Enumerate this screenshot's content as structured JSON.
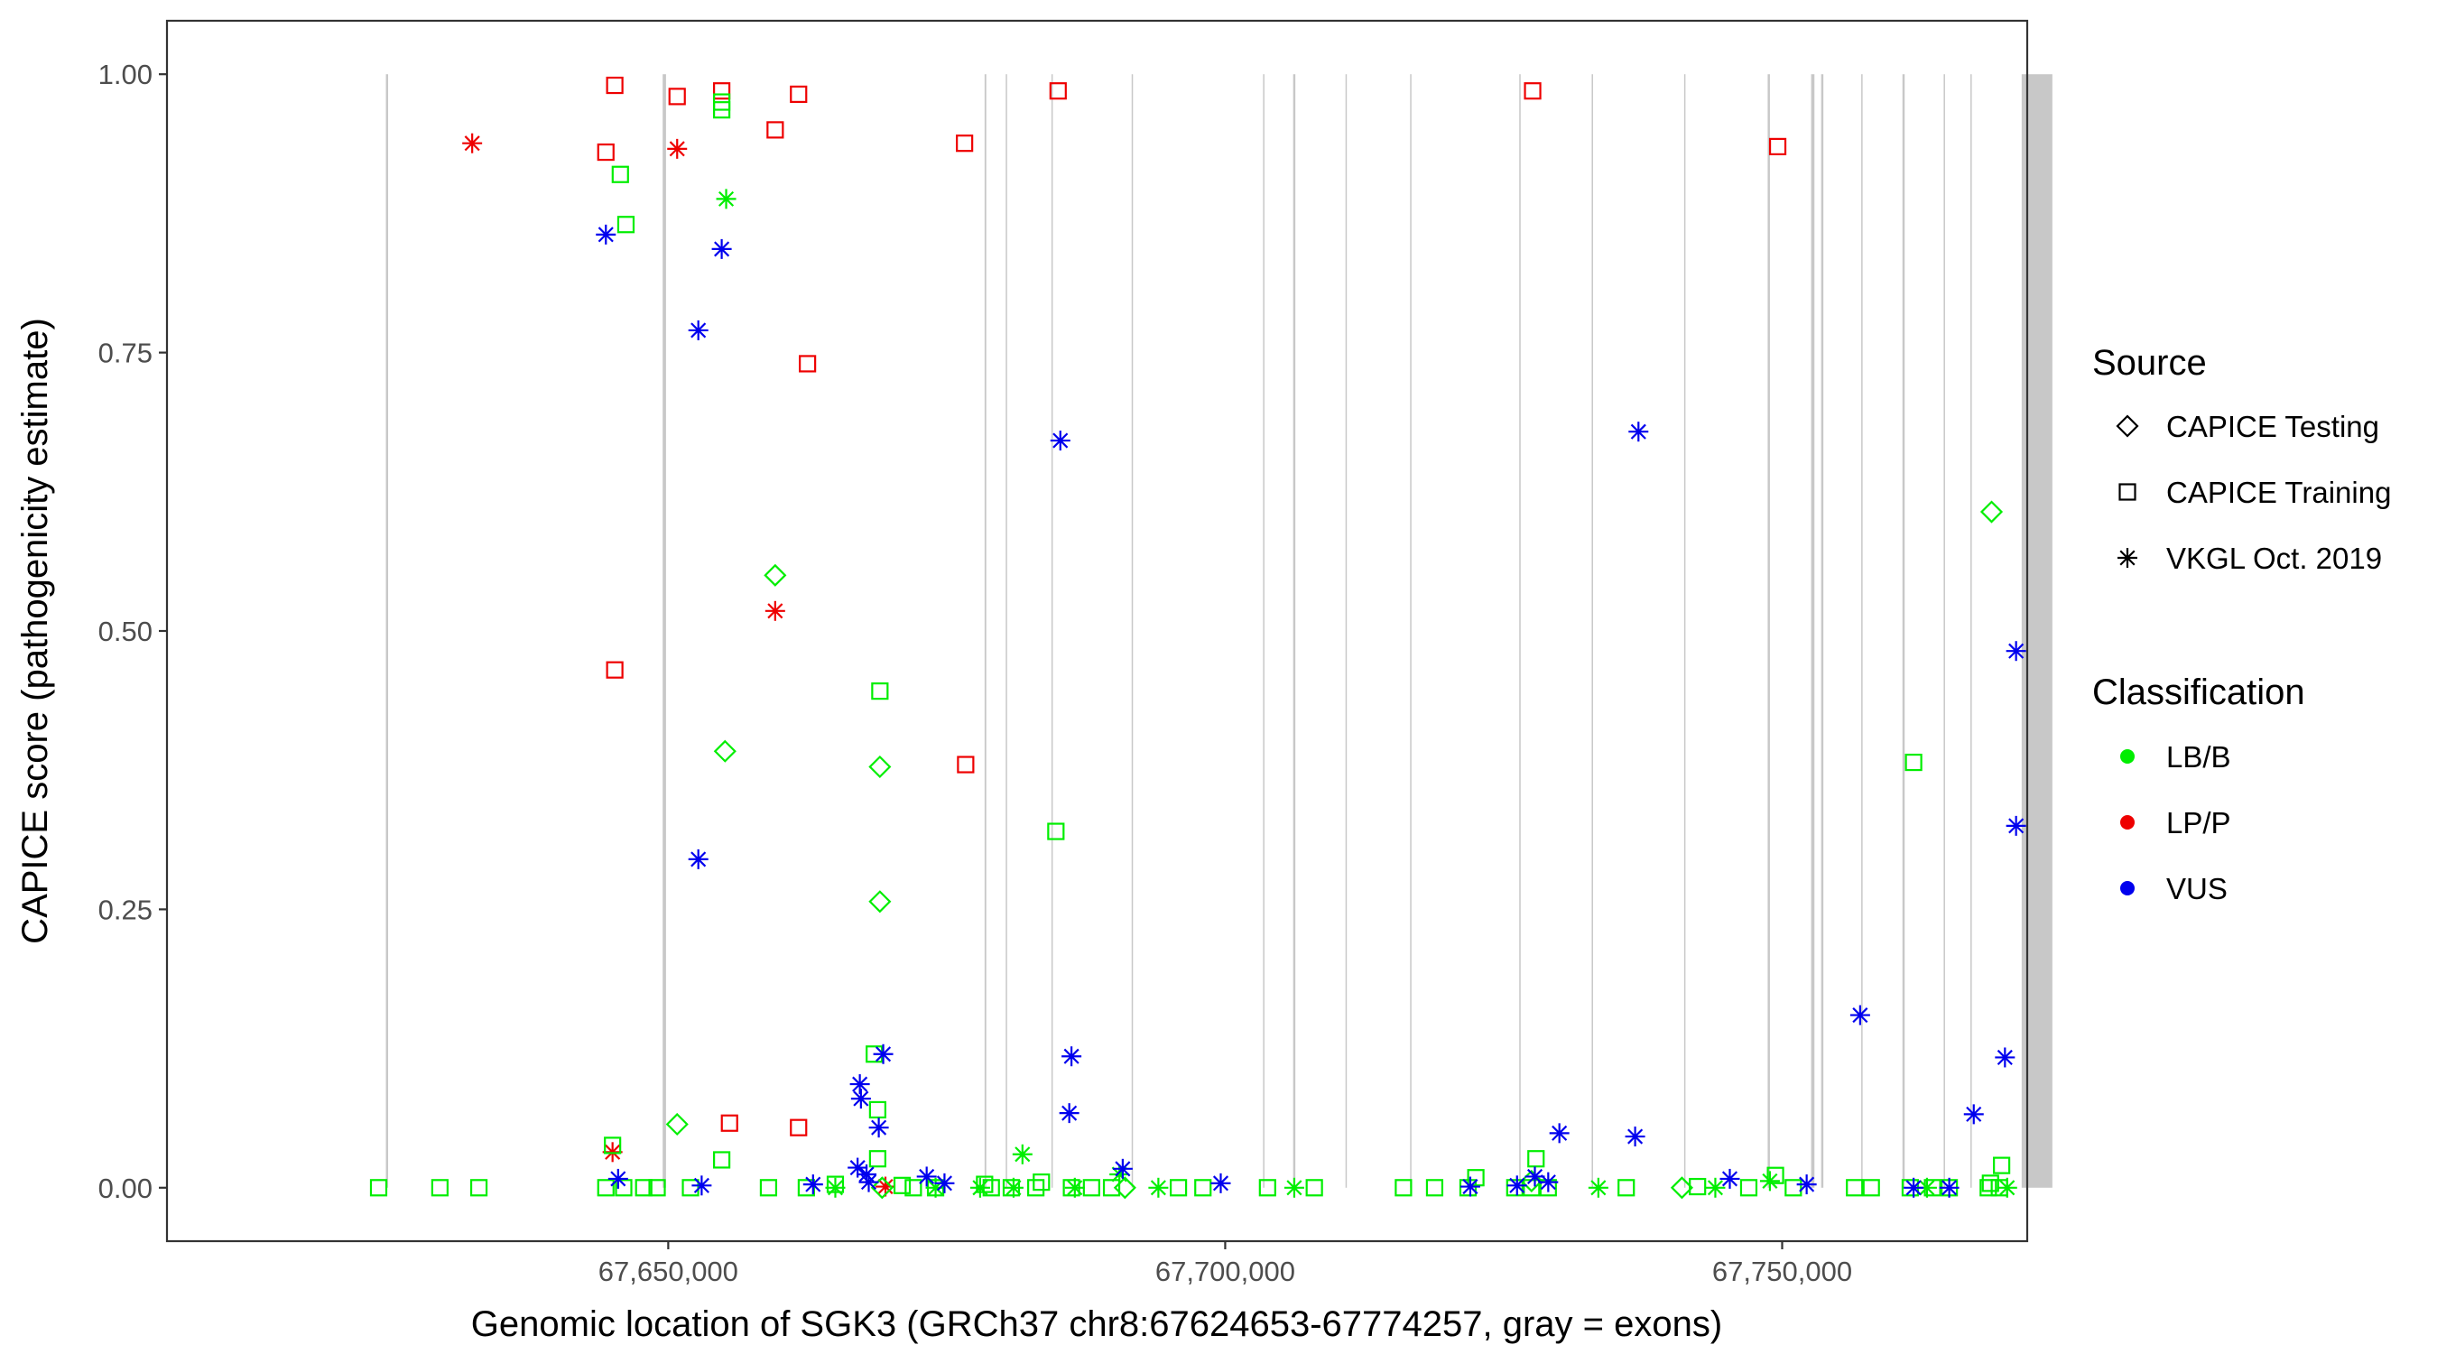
{
  "chart_data": {
    "type": "scatter",
    "xlabel": "Genomic location of SGK3 (GRCh37 chr8:67624653-67774257, gray = exons)",
    "ylabel": "CAPICE score (pathogenicity estimate)",
    "xlim": [
      67605000,
      67772000
    ],
    "ylim": [
      -0.048,
      1.048
    ],
    "x_ticks": [
      67650000,
      67700000,
      67750000
    ],
    "x_tick_labels": [
      "67,650,000",
      "67,700,000",
      "67,750,000"
    ],
    "y_ticks": [
      0,
      0.25,
      0.5,
      0.75,
      1
    ],
    "y_tick_labels": [
      "0.00",
      "0.25",
      "0.50",
      "0.75",
      "1.00"
    ],
    "grid": false,
    "exons": [
      [
        67624653,
        67624853
      ],
      [
        67649500,
        67649800
      ],
      [
        67678400,
        67678550
      ],
      [
        67680300,
        67680400
      ],
      [
        67684400,
        67684500
      ],
      [
        67691600,
        67691700
      ],
      [
        67703400,
        67703500
      ],
      [
        67706100,
        67706300
      ],
      [
        67710800,
        67710900
      ],
      [
        67716600,
        67716700
      ],
      [
        67726400,
        67726500
      ],
      [
        67732900,
        67733000
      ],
      [
        67741200,
        67741300
      ],
      [
        67748700,
        67748900
      ],
      [
        67752600,
        67752900
      ],
      [
        67753500,
        67753700
      ],
      [
        67757100,
        67757200
      ],
      [
        67760800,
        67761000
      ],
      [
        67764500,
        67764600
      ],
      [
        67766900,
        67767000
      ],
      [
        67771500,
        67774257
      ]
    ],
    "legend": {
      "position": "right",
      "source_title": "Source",
      "source_entries": [
        {
          "label": "CAPICE Testing",
          "shape": "diamond"
        },
        {
          "label": "CAPICE Training",
          "shape": "square"
        },
        {
          "label": "VKGL Oct. 2019",
          "shape": "asterisk"
        }
      ],
      "classification_title": "Classification",
      "classification_entries": [
        {
          "label": "LB/B",
          "color": "#00ee00"
        },
        {
          "label": "LP/P",
          "color": "#ee0000"
        },
        {
          "label": "VUS",
          "color": "#0000ee"
        }
      ]
    },
    "series": [
      {
        "source": "CAPICE Training",
        "classification": "LP/P",
        "shape": "square",
        "color": "#ee0000",
        "points": [
          [
            67645200,
            0.99
          ],
          [
            67644400,
            0.93
          ],
          [
            67650800,
            0.98
          ],
          [
            67654800,
            0.985
          ],
          [
            67659600,
            0.95
          ],
          [
            67661700,
            0.982
          ],
          [
            67662500,
            0.74
          ],
          [
            67645200,
            0.465
          ],
          [
            67676600,
            0.938
          ],
          [
            67685000,
            0.985
          ],
          [
            67727600,
            0.985
          ],
          [
            67749600,
            0.935
          ],
          [
            67676700,
            0.38
          ],
          [
            67655500,
            0.058
          ],
          [
            67661700,
            0.054
          ]
        ]
      },
      {
        "source": "VKGL Oct. 2019",
        "classification": "LP/P",
        "shape": "asterisk",
        "color": "#ee0000",
        "points": [
          [
            67632400,
            0.938
          ],
          [
            67650800,
            0.933
          ],
          [
            67659600,
            0.518
          ],
          [
            67645000,
            0.032
          ],
          [
            67669500,
            0.001
          ]
        ]
      },
      {
        "source": "CAPICE Training",
        "classification": "LB/B",
        "shape": "square",
        "color": "#00ee00",
        "points": [
          [
            67645700,
            0.91
          ],
          [
            67646200,
            0.865
          ],
          [
            67654800,
            0.975
          ],
          [
            67654800,
            0.968
          ],
          [
            67669000,
            0.446
          ],
          [
            67684800,
            0.32
          ],
          [
            67761800,
            0.382
          ],
          [
            67668500,
            0.12
          ],
          [
            67668800,
            0.07
          ],
          [
            67668800,
            0.026
          ],
          [
            67645000,
            0.038
          ],
          [
            67654800,
            0.025
          ],
          [
            67722500,
            0.009
          ],
          [
            67727900,
            0.026
          ],
          [
            67742400,
            0.001
          ],
          [
            67749400,
            0.011
          ],
          [
            67769700,
            0.02
          ],
          [
            67683500,
            0.005
          ],
          [
            67678400,
            0.003
          ],
          [
            67624000,
            0.0
          ],
          [
            67629500,
            0.0
          ],
          [
            67633000,
            0.0
          ],
          [
            67644400,
            0.0
          ],
          [
            67646000,
            0.0
          ],
          [
            67647800,
            0.0
          ],
          [
            67649000,
            0.0
          ],
          [
            67652000,
            0.0
          ],
          [
            67659000,
            0.0
          ],
          [
            67662400,
            0.0
          ],
          [
            67665000,
            0.003
          ],
          [
            67671000,
            0.002
          ],
          [
            67672000,
            0.0
          ],
          [
            67674000,
            0.0
          ],
          [
            67679000,
            0.0
          ],
          [
            67680800,
            0.0
          ],
          [
            67683000,
            0.0
          ],
          [
            67686200,
            0.0
          ],
          [
            67688000,
            0.0
          ],
          [
            67689800,
            0.0
          ],
          [
            67695800,
            0.0
          ],
          [
            67698000,
            0.0
          ],
          [
            67703800,
            0.0
          ],
          [
            67708000,
            0.0
          ],
          [
            67716000,
            0.0
          ],
          [
            67718800,
            0.0
          ],
          [
            67721800,
            0.0
          ],
          [
            67726000,
            0.0
          ],
          [
            67727500,
            0.0
          ],
          [
            67729000,
            0.0
          ],
          [
            67736000,
            0.0
          ],
          [
            67747000,
            0.0
          ],
          [
            67751000,
            0.0
          ],
          [
            67756500,
            0.0
          ],
          [
            67758000,
            0.0
          ],
          [
            67761500,
            0.0
          ],
          [
            67763500,
            0.0
          ],
          [
            67765000,
            0.0
          ],
          [
            67768500,
            0.0
          ],
          [
            67769500,
            0.0
          ],
          [
            67768700,
            0.004
          ]
        ]
      },
      {
        "source": "CAPICE Testing",
        "classification": "LB/B",
        "shape": "diamond",
        "color": "#00ee00",
        "points": [
          [
            67659600,
            0.55
          ],
          [
            67655100,
            0.392
          ],
          [
            67768800,
            0.607
          ],
          [
            67669000,
            0.378
          ],
          [
            67669000,
            0.257
          ],
          [
            67650800,
            0.057
          ],
          [
            67669200,
            0.0
          ],
          [
            67691000,
            0.0
          ],
          [
            67741000,
            0.0
          ],
          [
            67727500,
            0.006
          ]
        ]
      },
      {
        "source": "VKGL Oct. 2019",
        "classification": "LB/B",
        "shape": "asterisk",
        "color": "#00ee00",
        "points": [
          [
            67655200,
            0.888
          ],
          [
            67681800,
            0.03
          ],
          [
            67690500,
            0.012
          ],
          [
            67665000,
            0.0
          ],
          [
            67674000,
            0.0
          ],
          [
            67678000,
            0.0
          ],
          [
            67681000,
            0.0
          ],
          [
            67686500,
            0.0
          ],
          [
            67694000,
            0.0
          ],
          [
            67706200,
            0.0
          ],
          [
            67733500,
            0.0
          ],
          [
            67744000,
            0.0
          ],
          [
            67748900,
            0.006
          ],
          [
            67763000,
            0.0
          ],
          [
            67770200,
            0.0
          ]
        ]
      },
      {
        "source": "VKGL Oct. 2019",
        "classification": "VUS",
        "shape": "asterisk",
        "color": "#0000ee",
        "points": [
          [
            67644400,
            0.856
          ],
          [
            67654800,
            0.843
          ],
          [
            67652700,
            0.77
          ],
          [
            67685200,
            0.671
          ],
          [
            67737100,
            0.679
          ],
          [
            67771000,
            0.482
          ],
          [
            67771000,
            0.325
          ],
          [
            67652700,
            0.295
          ],
          [
            67757000,
            0.155
          ],
          [
            67770000,
            0.117
          ],
          [
            67669300,
            0.12
          ],
          [
            67686200,
            0.118
          ],
          [
            67667200,
            0.093
          ],
          [
            67667300,
            0.08
          ],
          [
            67668900,
            0.054
          ],
          [
            67686000,
            0.067
          ],
          [
            67767200,
            0.066
          ],
          [
            67730000,
            0.049
          ],
          [
            67736800,
            0.046
          ],
          [
            67690800,
            0.017
          ],
          [
            67699600,
            0.004
          ],
          [
            67645500,
            0.008
          ],
          [
            67653000,
            0.002
          ],
          [
            67663000,
            0.003
          ],
          [
            67667000,
            0.018
          ],
          [
            67667800,
            0.012
          ],
          [
            67668000,
            0.005
          ],
          [
            67673200,
            0.01
          ],
          [
            67674800,
            0.004
          ],
          [
            67722000,
            0.001
          ],
          [
            67726200,
            0.002
          ],
          [
            67727800,
            0.01
          ],
          [
            67729000,
            0.005
          ],
          [
            67745300,
            0.008
          ],
          [
            67752200,
            0.003
          ],
          [
            67761800,
            0.0
          ],
          [
            67765000,
            0.0
          ]
        ]
      }
    ]
  }
}
